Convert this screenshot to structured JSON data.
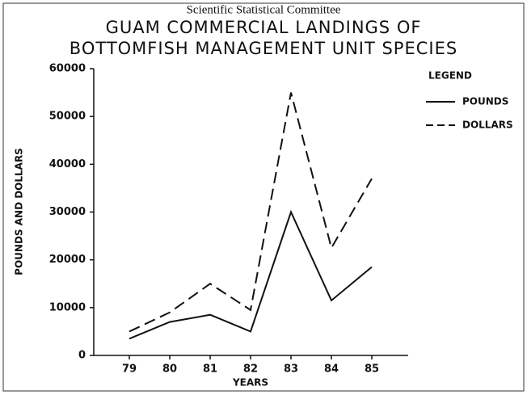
{
  "header": "Scientific Statistical Committee",
  "chart_data": {
    "type": "line",
    "title": [
      "GUAM COMMERCIAL LANDINGS OF",
      "BOTTOMFISH MANAGEMENT UNIT SPECIES"
    ],
    "x_label": "YEARS",
    "y_label": "POUNDS AND DOLLARS",
    "legend_title": "LEGEND",
    "legend": "right",
    "categories": [
      "79",
      "80",
      "81",
      "82",
      "83",
      "84",
      "85"
    ],
    "series": [
      {
        "name": "POUNDS",
        "color": "#111111",
        "line_style": "solid",
        "values": [
          3500,
          7000,
          8500,
          5000,
          30000,
          11500,
          18500
        ]
      },
      {
        "name": "DOLLARS",
        "color": "#111111",
        "line_style": "dashed",
        "values": [
          5000,
          9000,
          15000,
          9500,
          55000,
          22500,
          37000
        ]
      }
    ],
    "ylim": [
      0,
      60000
    ],
    "yticks": [
      0,
      10000,
      20000,
      30000,
      40000,
      50000,
      60000
    ],
    "grid": false
  }
}
